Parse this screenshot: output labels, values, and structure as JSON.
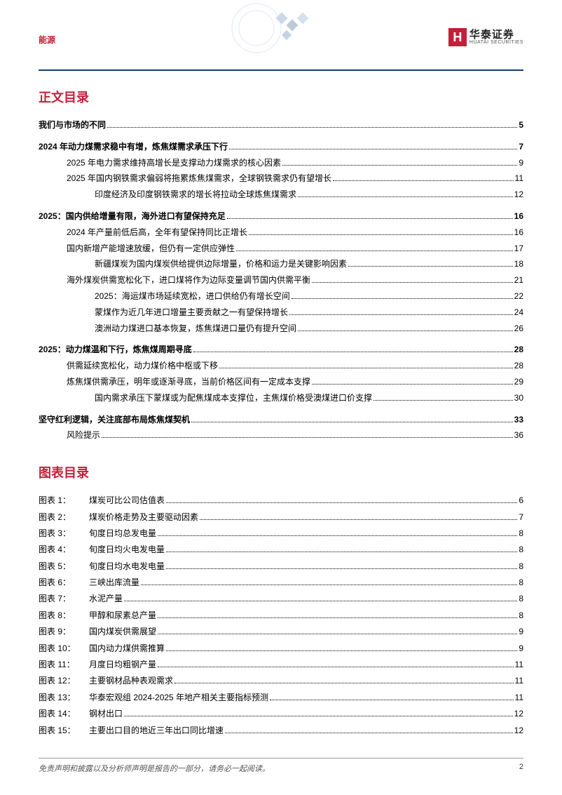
{
  "header": {
    "category": "能源",
    "logo_cn": "华泰证券",
    "logo_en": "HUATAI SECURITIES",
    "logo_mark": "H"
  },
  "sections": {
    "toc_title": "正文目录",
    "figures_title": "图表目录"
  },
  "toc": [
    {
      "label": "我们与市场的不同",
      "page": "5",
      "level": 0,
      "bold": true
    },
    {
      "label": "2024 年动力煤需求稳中有增，炼焦煤需求承压下行",
      "page": "7",
      "level": 0,
      "bold": true
    },
    {
      "label": "2025 年电力需求维持高增长是支撑动力煤需求的核心因素",
      "page": "9",
      "level": 1,
      "bold": false
    },
    {
      "label": "2025 年国内钢铁需求偏弱将拖累炼焦煤需求，全球钢铁需求仍有望增长",
      "page": "11",
      "level": 1,
      "bold": false
    },
    {
      "label": "印度经济及印度钢铁需求的增长将拉动全球炼焦煤需求",
      "page": "12",
      "level": 2,
      "bold": false
    },
    {
      "label": "2025：国内供给增量有限，海外进口有望保持充足",
      "page": "16",
      "level": 0,
      "bold": true
    },
    {
      "label": "2024 年产量前低后高，全年有望保持同比正增长",
      "page": "16",
      "level": 1,
      "bold": false
    },
    {
      "label": "国内新增产能增速放缓，但仍有一定供应弹性",
      "page": "17",
      "level": 1,
      "bold": false
    },
    {
      "label": "新疆煤炭为国内煤炭供给提供边际增量，价格和运力是关键影响因素",
      "page": "18",
      "level": 2,
      "bold": false
    },
    {
      "label": "海外煤炭供需宽松化下，进口煤将作为边际变量调节国内供需平衡",
      "page": "21",
      "level": 1,
      "bold": false
    },
    {
      "label": "2025：海运煤市场延续宽松，进口供给仍有增长空间",
      "page": "22",
      "level": 2,
      "bold": false
    },
    {
      "label": "蒙煤作为近几年进口增量主要贡献之一有望保持增长",
      "page": "24",
      "level": 2,
      "bold": false
    },
    {
      "label": "澳洲动力煤进口基本恢复，炼焦煤进口量仍有提升空间",
      "page": "26",
      "level": 2,
      "bold": false
    },
    {
      "label": "2025：动力煤温和下行，炼焦煤周期寻底",
      "page": "28",
      "level": 0,
      "bold": true
    },
    {
      "label": "供需延续宽松化，动力煤价格中枢或下移",
      "page": "28",
      "level": 1,
      "bold": false
    },
    {
      "label": "炼焦煤供需承压，明年或逐渐寻底，当前价格区间有一定成本支撑",
      "page": "29",
      "level": 1,
      "bold": false
    },
    {
      "label": "国内需求承压下蒙煤或为配焦煤成本支撑位，主焦煤价格受澳煤进口价支撑",
      "page": "30",
      "level": 2,
      "bold": false
    },
    {
      "label": "坚守红利逻辑，关注底部布局炼焦煤契机",
      "page": "33",
      "level": 0,
      "bold": true
    },
    {
      "label": "风险提示",
      "page": "36",
      "level": 1,
      "bold": false
    }
  ],
  "figures": [
    {
      "prefix": "图表 1：",
      "label": "煤炭可比公司估值表",
      "page": "6"
    },
    {
      "prefix": "图表 2：",
      "label": "煤炭价格走势及主要驱动因素",
      "page": "7"
    },
    {
      "prefix": "图表 3：",
      "label": "旬度日均总发电量",
      "page": "8"
    },
    {
      "prefix": "图表 4：",
      "label": "旬度日均火电发电量",
      "page": "8"
    },
    {
      "prefix": "图表 5：",
      "label": "旬度日均水电发电量",
      "page": "8"
    },
    {
      "prefix": "图表 6：",
      "label": "三峡出库流量",
      "page": "8"
    },
    {
      "prefix": "图表 7：",
      "label": "水泥产量",
      "page": "8"
    },
    {
      "prefix": "图表 8：",
      "label": "甲醇和尿素总产量",
      "page": "8"
    },
    {
      "prefix": "图表 9：",
      "label": "国内煤炭供需展望",
      "page": "9"
    },
    {
      "prefix": "图表 10：",
      "label": "国内动力煤供需推算",
      "page": "9"
    },
    {
      "prefix": "图表 11：",
      "label": "月度日均粗钢产量",
      "page": "11"
    },
    {
      "prefix": "图表 12：",
      "label": "主要钢材品种表观需求",
      "page": "11"
    },
    {
      "prefix": "图表 13：",
      "label": "华泰宏观组 2024-2025 年地产相关主要指标预测",
      "page": "11"
    },
    {
      "prefix": "图表 14：",
      "label": "钢材出口",
      "page": "12"
    },
    {
      "prefix": "图表 15：",
      "label": "主要出口目的地近三年出口同比增速",
      "page": "12"
    }
  ],
  "footer": {
    "disclaimer": "免责声明和披露以及分析师声明是报告的一部分，请务必一起阅读。",
    "page_number": "2"
  },
  "colors": {
    "brand_red": "#c41e3a",
    "header_line": "#1a3a6e",
    "text": "#000000",
    "footer_text": "#555555",
    "footer_border": "#999999",
    "background": "#ffffff"
  }
}
